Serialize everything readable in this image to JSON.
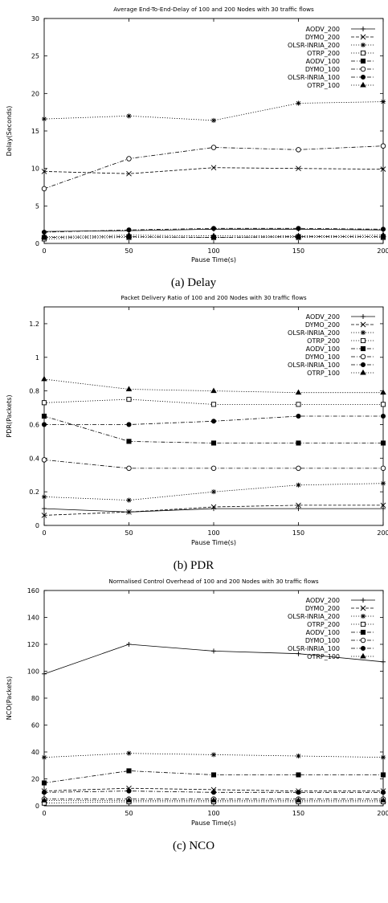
{
  "figure": {
    "captions": [
      "(a) Delay",
      "(b) PDR",
      "(c) NCO"
    ]
  },
  "chart_data": [
    {
      "type": "line",
      "title": "Average End-To-End-Delay of 100 and 200 Nodes with 30 traffic flows",
      "xlabel": "Pause Time(s)",
      "ylabel": "Delay(Seconds)",
      "x": [
        0,
        50,
        100,
        150,
        200
      ],
      "xlim": [
        0,
        200
      ],
      "ylim": [
        0,
        30
      ],
      "xticks": [
        "0",
        "50",
        "100",
        "150",
        "200"
      ],
      "yticks": [
        "0",
        "5",
        "10",
        "15",
        "20",
        "25",
        "30"
      ],
      "grid": false,
      "legend_position": "top-right",
      "series": [
        {
          "name": "AODV_200",
          "marker": "plus",
          "dash": "solid",
          "values": [
            1.6,
            1.7,
            1.9,
            1.9,
            1.8
          ]
        },
        {
          "name": "DYMO_200",
          "marker": "x",
          "dash": "dashed",
          "values": [
            9.6,
            9.3,
            10.1,
            10.0,
            9.9
          ]
        },
        {
          "name": "OLSR-INRIA_200",
          "marker": "star",
          "dash": "dotted",
          "values": [
            16.6,
            17.0,
            16.4,
            18.7,
            18.9
          ]
        },
        {
          "name": "OTRP_200",
          "marker": "square-open",
          "dash": "dotted",
          "values": [
            0.6,
            0.8,
            0.8,
            0.8,
            0.8
          ]
        },
        {
          "name": "AODV_100",
          "marker": "square-filled",
          "dash": "dashdot",
          "values": [
            0.8,
            0.9,
            0.8,
            0.9,
            0.9
          ]
        },
        {
          "name": "DYMO_100",
          "marker": "circle-open",
          "dash": "dashdot",
          "values": [
            7.3,
            11.3,
            12.8,
            12.5,
            13.0
          ]
        },
        {
          "name": "OLSR-INRIA_100",
          "marker": "circle-filled",
          "dash": "dashdot",
          "values": [
            1.5,
            1.8,
            2.0,
            2.0,
            1.9
          ]
        },
        {
          "name": "OTRP_100",
          "marker": "triangle",
          "dash": "dotted",
          "values": [
            0.9,
            1.1,
            1.0,
            1.0,
            1.1
          ]
        }
      ]
    },
    {
      "type": "line",
      "title": "Packet Delivery Ratio of 100 and 200 Nodes with 30 traffic flows",
      "xlabel": "Pause Time(s)",
      "ylabel": "PDR(Packets)",
      "x": [
        0,
        50,
        100,
        150,
        200
      ],
      "xlim": [
        0,
        200
      ],
      "ylim": [
        0,
        1.3
      ],
      "xticks": [
        "0",
        "50",
        "100",
        "150",
        "200"
      ],
      "yticks": [
        "0",
        "0.2",
        "0.4",
        "0.6",
        "0.8",
        "1",
        "1.2"
      ],
      "grid": false,
      "legend_position": "top-right",
      "series": [
        {
          "name": "AODV_200",
          "marker": "plus",
          "dash": "solid",
          "values": [
            0.1,
            0.08,
            0.1,
            0.1,
            0.1
          ]
        },
        {
          "name": "DYMO_200",
          "marker": "x",
          "dash": "dashed",
          "values": [
            0.06,
            0.08,
            0.11,
            0.12,
            0.12
          ]
        },
        {
          "name": "OLSR-INRIA_200",
          "marker": "star",
          "dash": "dotted",
          "values": [
            0.17,
            0.15,
            0.2,
            0.24,
            0.25
          ]
        },
        {
          "name": "OTRP_200",
          "marker": "square-open",
          "dash": "dotted",
          "values": [
            0.73,
            0.75,
            0.72,
            0.72,
            0.72
          ]
        },
        {
          "name": "AODV_100",
          "marker": "square-filled",
          "dash": "dashdot",
          "values": [
            0.65,
            0.5,
            0.49,
            0.49,
            0.49
          ]
        },
        {
          "name": "DYMO_100",
          "marker": "circle-open",
          "dash": "dashdot",
          "values": [
            0.39,
            0.34,
            0.34,
            0.34,
            0.34
          ]
        },
        {
          "name": "OLSR-INRIA_100",
          "marker": "circle-filled",
          "dash": "dashdot",
          "values": [
            0.6,
            0.6,
            0.62,
            0.65,
            0.65
          ]
        },
        {
          "name": "OTRP_100",
          "marker": "triangle",
          "dash": "dotted",
          "values": [
            0.87,
            0.81,
            0.8,
            0.79,
            0.79
          ]
        }
      ]
    },
    {
      "type": "line",
      "title": "Normalised Control Overhead of 100 and 200 Nodes with 30 traffic flows",
      "xlabel": "Pause Time(s)",
      "ylabel": "NCO(Packets)",
      "x": [
        0,
        50,
        100,
        150,
        200
      ],
      "xlim": [
        0,
        200
      ],
      "ylim": [
        0,
        160
      ],
      "xticks": [
        "0",
        "50",
        "100",
        "150",
        "200"
      ],
      "yticks": [
        "0",
        "20",
        "40",
        "60",
        "80",
        "100",
        "120",
        "140",
        "160"
      ],
      "grid": false,
      "legend_position": "top-right",
      "series": [
        {
          "name": "AODV_200",
          "marker": "plus",
          "dash": "solid",
          "values": [
            98,
            120,
            115,
            113,
            107
          ]
        },
        {
          "name": "DYMO_200",
          "marker": "x",
          "dash": "dashed",
          "values": [
            11,
            13,
            12,
            11,
            11
          ]
        },
        {
          "name": "OLSR-INRIA_200",
          "marker": "star",
          "dash": "dotted",
          "values": [
            36,
            39,
            38,
            37,
            36
          ]
        },
        {
          "name": "OTRP_200",
          "marker": "square-open",
          "dash": "dotted",
          "values": [
            2,
            3,
            3,
            3,
            3
          ]
        },
        {
          "name": "AODV_100",
          "marker": "square-filled",
          "dash": "dashdot",
          "values": [
            17,
            26,
            23,
            23,
            23
          ]
        },
        {
          "name": "DYMO_100",
          "marker": "circle-open",
          "dash": "dashdot",
          "values": [
            5,
            5,
            5,
            5,
            5
          ]
        },
        {
          "name": "OLSR-INRIA_100",
          "marker": "circle-filled",
          "dash": "dashdot",
          "values": [
            10,
            11,
            10,
            10,
            10
          ]
        },
        {
          "name": "OTRP_100",
          "marker": "triangle",
          "dash": "dotted",
          "values": [
            4,
            4,
            4,
            4,
            4
          ]
        }
      ]
    }
  ]
}
